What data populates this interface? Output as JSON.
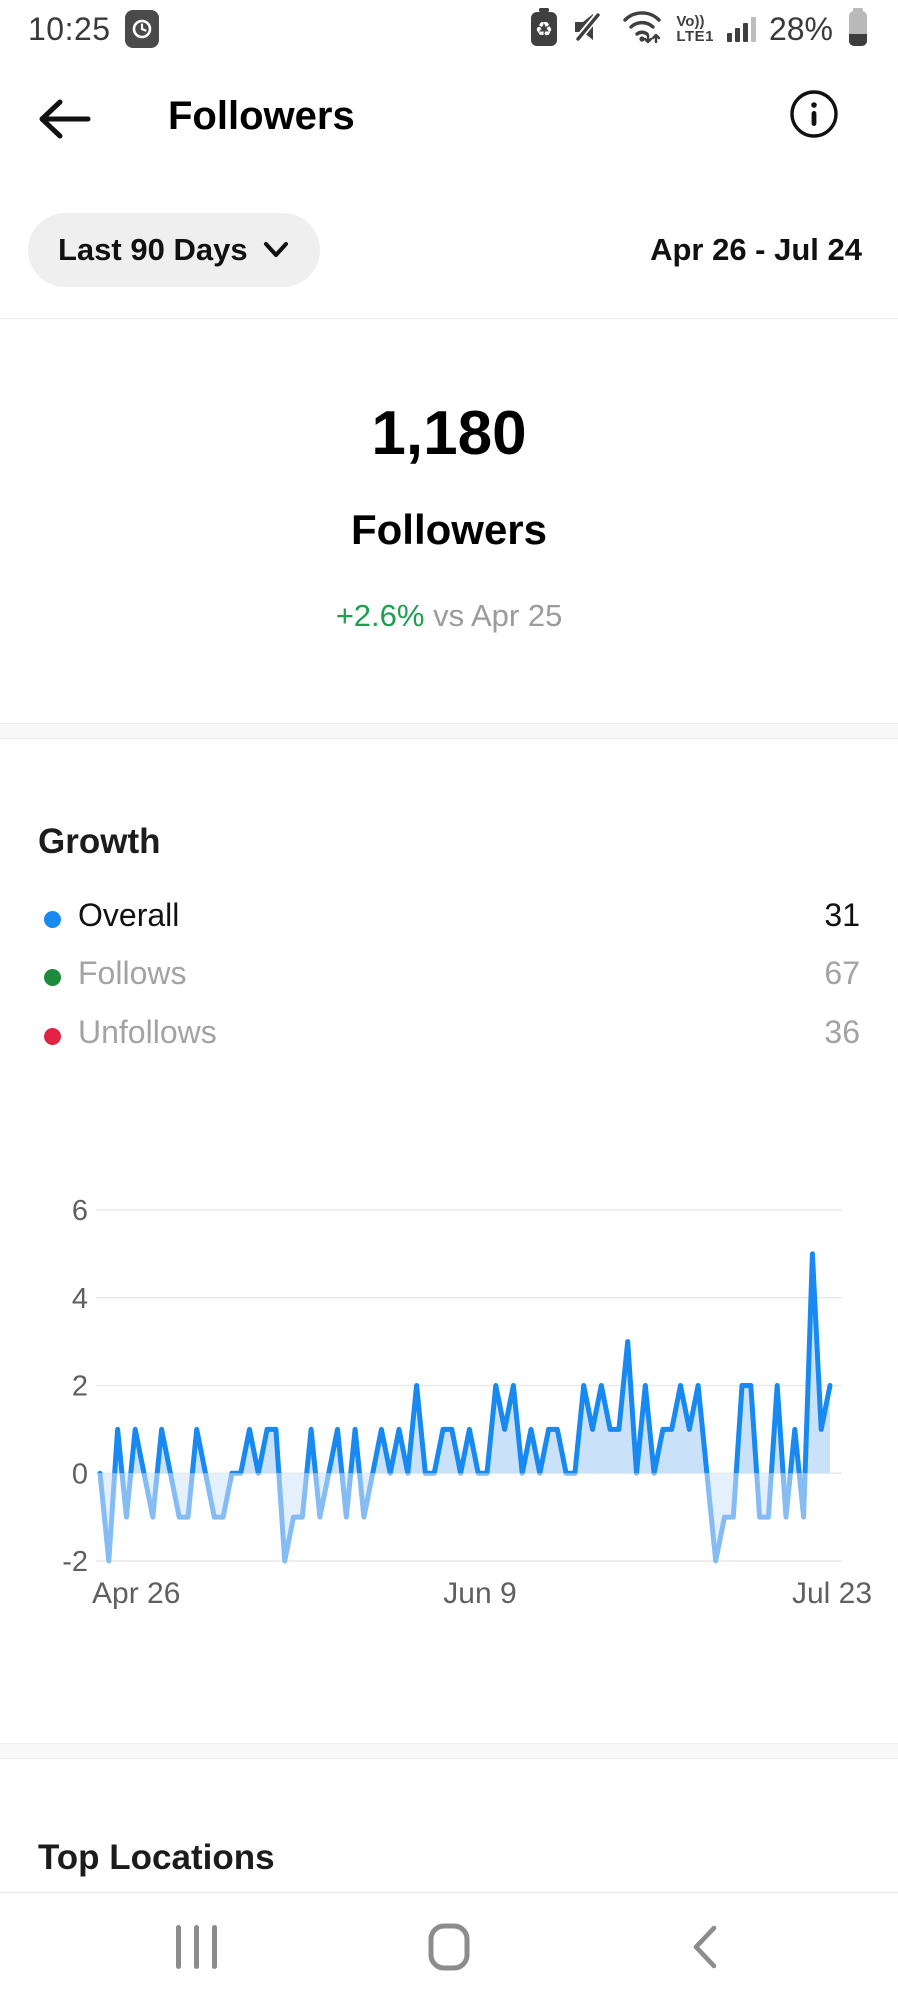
{
  "status_bar": {
    "time": "10:25",
    "volte_top": "Vo))",
    "volte_bottom": "LTE1",
    "battery_percent": "28%",
    "icons": [
      "clock-badge-icon",
      "power-saving-icon",
      "mute-icon",
      "wifi-icon",
      "signal-icon",
      "battery-icon"
    ]
  },
  "header": {
    "title": "Followers"
  },
  "filter": {
    "range_label": "Last 90 Days",
    "date_range": "Apr 26 - Jul 24"
  },
  "summary": {
    "count": "1,180",
    "label": "Followers",
    "delta": "+2.6%",
    "comparison": " vs Apr 25",
    "delta_color": "#1e9e4f"
  },
  "growth": {
    "heading": "Growth",
    "legend": [
      {
        "label": "Overall",
        "value": "31",
        "color": "#1789f0",
        "emphasis": true
      },
      {
        "label": "Follows",
        "value": "67",
        "color": "#1d8a3c",
        "emphasis": false
      },
      {
        "label": "Unfollows",
        "value": "36",
        "color": "#df2445",
        "emphasis": false
      }
    ]
  },
  "chart_data": {
    "type": "line",
    "title": "Daily overall follower growth",
    "xticks": [
      "Apr 26",
      "Jun 9",
      "Jul 23"
    ],
    "yticks": [
      6,
      4,
      2,
      0,
      -2
    ],
    "ylim": [
      -2,
      6
    ],
    "x_range_days": [
      "Apr 26",
      "Jul 23"
    ],
    "values": [
      0,
      -2,
      1,
      -1,
      1,
      0,
      -1,
      1,
      0,
      -1,
      -1,
      1,
      0,
      -1,
      -1,
      0,
      0,
      1,
      0,
      1,
      1,
      -2,
      -1,
      -1,
      1,
      -1,
      0,
      1,
      -1,
      1,
      -1,
      0,
      1,
      0,
      1,
      0,
      2,
      0,
      0,
      1,
      1,
      0,
      1,
      0,
      0,
      2,
      1,
      2,
      0,
      1,
      0,
      1,
      1,
      0,
      0,
      2,
      1,
      2,
      1,
      1,
      3,
      0,
      2,
      0,
      1,
      1,
      2,
      1,
      2,
      0,
      -2,
      -1,
      -1,
      2,
      2,
      -1,
      -1,
      2,
      -1,
      1,
      -1,
      5,
      1,
      2
    ],
    "grid": true,
    "legend_position": "none",
    "line_color_positive": "#1789f0",
    "line_color_negative": "#85bcf4",
    "fill_color_positive": "#c9e2fa",
    "fill_color_negative": "#e4f0fc",
    "grid_color": "#e9e9e9",
    "tick_color": "#5f5f5f"
  },
  "locations": {
    "heading": "Top Locations"
  },
  "navbar": {
    "buttons": [
      "recents",
      "home",
      "back"
    ]
  }
}
